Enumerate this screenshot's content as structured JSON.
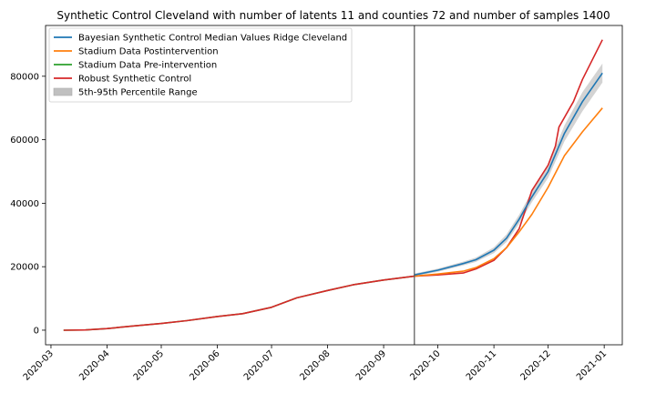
{
  "chart_data": {
    "type": "line",
    "title": "Synthetic Control Cleveland with number of latents 11 and counties 72 and number of samples 1400",
    "xlabel": "",
    "ylabel": "",
    "x_ticks": [
      "2020-03",
      "2020-04",
      "2020-05",
      "2020-06",
      "2020-07",
      "2020-08",
      "2020-09",
      "2020-10",
      "2020-11",
      "2020-12",
      "2021-01"
    ],
    "x_range": [
      "2020-02-27",
      "2021-01-11"
    ],
    "y_ticks": [
      0,
      20000,
      40000,
      60000,
      80000
    ],
    "y_range": [
      -4600,
      96000
    ],
    "intervention_date": "2020-09-18",
    "grid": false,
    "legend_position": "top-left",
    "series": [
      {
        "name": "Bayesian Synthetic Control Median Values Ridge Cleveland",
        "color": "#1f77b4",
        "points": [
          [
            "2020-09-18",
            17400
          ],
          [
            "2020-10-01",
            18900
          ],
          [
            "2020-10-15",
            21000
          ],
          [
            "2020-10-22",
            22200
          ],
          [
            "2020-11-01",
            25200
          ],
          [
            "2020-11-08",
            29000
          ],
          [
            "2020-11-15",
            35000
          ],
          [
            "2020-11-22",
            42000
          ],
          [
            "2020-12-01",
            50000
          ],
          [
            "2020-12-10",
            62000
          ],
          [
            "2020-12-20",
            72000
          ],
          [
            "2020-12-31",
            81000
          ]
        ]
      },
      {
        "name": "Stadium Data Postintervention",
        "color": "#ff7f0e",
        "points": [
          [
            "2020-09-18",
            17000
          ],
          [
            "2020-10-01",
            17700
          ],
          [
            "2020-10-15",
            18600
          ],
          [
            "2020-10-22",
            19700
          ],
          [
            "2020-11-01",
            22500
          ],
          [
            "2020-11-08",
            26000
          ],
          [
            "2020-11-15",
            31000
          ],
          [
            "2020-11-22",
            36500
          ],
          [
            "2020-12-01",
            45000
          ],
          [
            "2020-12-10",
            55000
          ],
          [
            "2020-12-20",
            62500
          ],
          [
            "2020-12-31",
            70000
          ]
        ]
      },
      {
        "name": "Stadium Data Pre-intervention",
        "color": "#2ca02c",
        "points": [
          [
            "2020-03-08",
            0
          ],
          [
            "2020-03-20",
            80
          ],
          [
            "2020-04-01",
            500
          ],
          [
            "2020-04-15",
            1300
          ],
          [
            "2020-05-01",
            2100
          ],
          [
            "2020-05-15",
            3000
          ],
          [
            "2020-06-01",
            4300
          ],
          [
            "2020-06-15",
            5200
          ],
          [
            "2020-07-01",
            7200
          ],
          [
            "2020-07-15",
            10200
          ],
          [
            "2020-08-01",
            12500
          ],
          [
            "2020-08-15",
            14300
          ],
          [
            "2020-09-01",
            15800
          ],
          [
            "2020-09-18",
            17000
          ]
        ]
      },
      {
        "name": "Robust Synthetic Control",
        "color": "#d62728",
        "points": [
          [
            "2020-03-08",
            0
          ],
          [
            "2020-03-20",
            80
          ],
          [
            "2020-04-01",
            500
          ],
          [
            "2020-04-15",
            1300
          ],
          [
            "2020-05-01",
            2100
          ],
          [
            "2020-05-15",
            3000
          ],
          [
            "2020-06-01",
            4300
          ],
          [
            "2020-06-15",
            5200
          ],
          [
            "2020-07-01",
            7200
          ],
          [
            "2020-07-15",
            10200
          ],
          [
            "2020-08-01",
            12500
          ],
          [
            "2020-08-15",
            14300
          ],
          [
            "2020-09-01",
            15800
          ],
          [
            "2020-09-18",
            17000
          ],
          [
            "2020-10-01",
            17400
          ],
          [
            "2020-10-15",
            18000
          ],
          [
            "2020-10-22",
            19300
          ],
          [
            "2020-11-01",
            22000
          ],
          [
            "2020-11-08",
            26000
          ],
          [
            "2020-11-15",
            32000
          ],
          [
            "2020-11-22",
            44000
          ],
          [
            "2020-12-01",
            52000
          ],
          [
            "2020-12-05",
            58000
          ],
          [
            "2020-12-07",
            64000
          ],
          [
            "2020-12-15",
            72000
          ],
          [
            "2020-12-20",
            79000
          ],
          [
            "2020-12-31",
            91500
          ]
        ]
      }
    ],
    "band": {
      "name": "5th-95th Percentile Range",
      "color": "#c0c0c0",
      "points": [
        [
          "2020-09-18",
          17000,
          17800
        ],
        [
          "2020-10-01",
          18400,
          19400
        ],
        [
          "2020-10-15",
          20400,
          21600
        ],
        [
          "2020-10-22",
          21500,
          22900
        ],
        [
          "2020-11-01",
          24300,
          26100
        ],
        [
          "2020-11-08",
          27800,
          30200
        ],
        [
          "2020-11-15",
          33600,
          36400
        ],
        [
          "2020-11-22",
          40300,
          43700
        ],
        [
          "2020-12-01",
          48000,
          52000
        ],
        [
          "2020-12-10",
          59500,
          64500
        ],
        [
          "2020-12-20",
          69000,
          75000
        ],
        [
          "2020-12-31",
          78000,
          84000
        ]
      ]
    }
  }
}
